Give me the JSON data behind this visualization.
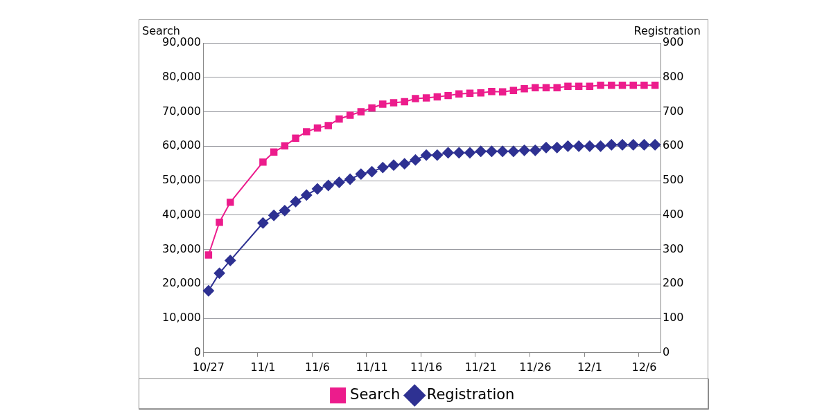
{
  "chart_data": {
    "type": "line",
    "ylabel": "Search",
    "y2label": "Registration",
    "categories": [
      "10/27",
      null,
      null,
      null,
      null,
      "11/1",
      null,
      null,
      null,
      null,
      "11/6",
      null,
      null,
      null,
      null,
      "11/11",
      null,
      null,
      null,
      null,
      "11/16",
      null,
      null,
      null,
      null,
      "11/21",
      null,
      null,
      null,
      null,
      "11/26",
      null,
      null,
      null,
      null,
      "12/1",
      null,
      null,
      null,
      null,
      "12/6",
      null
    ],
    "series": [
      {
        "name": "Search",
        "color": "#ec1c8c",
        "marker": "square",
        "values": [
          28400,
          37900,
          43700,
          null,
          null,
          55400,
          58300,
          60100,
          62300,
          64200,
          65300,
          66000,
          67900,
          69000,
          70000,
          71100,
          72200,
          72600,
          72900,
          73800,
          74000,
          74300,
          74700,
          75200,
          75400,
          75500,
          75900,
          75800,
          76200,
          76700,
          77000,
          77000,
          77000,
          77400,
          77400,
          77400,
          77700,
          77700,
          77700,
          77700,
          77700,
          77700
        ]
      },
      {
        "name": "Registration",
        "color": "#2e3192",
        "marker": "diamond",
        "axis": "y2",
        "values": [
          180,
          231,
          268,
          null,
          null,
          377,
          399,
          413,
          439,
          458,
          476,
          486,
          495,
          504,
          519,
          526,
          538,
          545,
          549,
          560,
          574,
          574,
          581,
          581,
          581,
          585,
          585,
          585,
          585,
          588,
          588,
          596,
          596,
          600,
          600,
          600,
          600,
          604,
          604,
          604,
          604,
          604
        ]
      }
    ],
    "ylim": [
      0,
      90000
    ],
    "yticks": [
      {
        "value": 0,
        "label": "0"
      },
      {
        "value": 10000,
        "label": "10,000"
      },
      {
        "value": 20000,
        "label": "20,000"
      },
      {
        "value": 30000,
        "label": "30,000"
      },
      {
        "value": 40000,
        "label": "40,000"
      },
      {
        "value": 50000,
        "label": "50,000"
      },
      {
        "value": 60000,
        "label": "60,000"
      },
      {
        "value": 70000,
        "label": "70,000"
      },
      {
        "value": 80000,
        "label": "80,000"
      },
      {
        "value": 90000,
        "label": "90,000"
      }
    ],
    "y2lim": [
      0,
      900
    ],
    "y2ticks": [
      0,
      100,
      200,
      300,
      400,
      500,
      600,
      700,
      800,
      900
    ],
    "grid": "y",
    "legend": "bottom",
    "line_style": "solid"
  }
}
